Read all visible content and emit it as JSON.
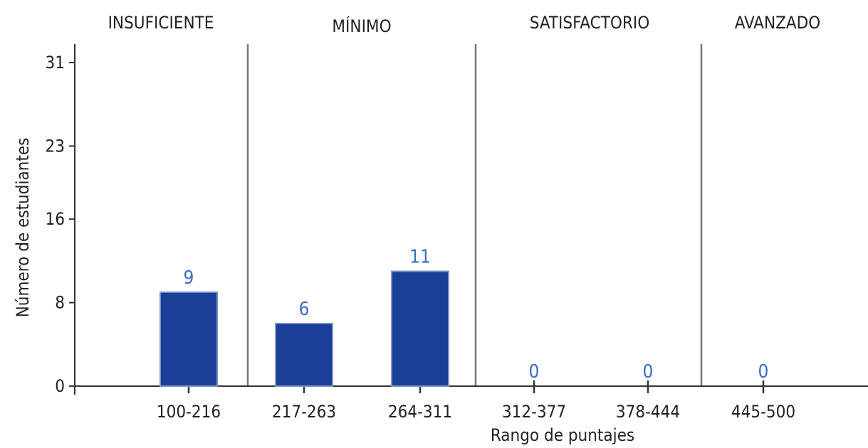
{
  "chart_data": {
    "type": "bar",
    "xlabel": "Rango de puntajes",
    "ylabel": "Número de estudiantes",
    "ylim": [
      0,
      31
    ],
    "yticks": [
      0,
      8,
      16,
      23,
      31
    ],
    "categories": [
      "100-216",
      "217-263",
      "264-311",
      "312-377",
      "378-444",
      "445-500"
    ],
    "values": [
      9,
      6,
      11,
      0,
      0,
      0
    ],
    "data_labels": [
      "9",
      "6",
      "11",
      "0",
      "0",
      "0"
    ],
    "levels": [
      {
        "name": "INSUFICIENTE",
        "categories": [
          "100-216"
        ]
      },
      {
        "name": "MÍNIMO",
        "categories": [
          "217-263",
          "264-311"
        ]
      },
      {
        "name": "SATISFACTORIO",
        "categories": [
          "312-377",
          "378-444"
        ]
      },
      {
        "name": "AVANZADO",
        "categories": [
          "445-500"
        ]
      }
    ],
    "colors": {
      "bar": "#1b3f96",
      "bar_edge": "#7a94c9",
      "value_label": "#3b6cc4",
      "axis": "#333333",
      "divider": "#777777"
    },
    "grid": false,
    "legend": "none"
  }
}
